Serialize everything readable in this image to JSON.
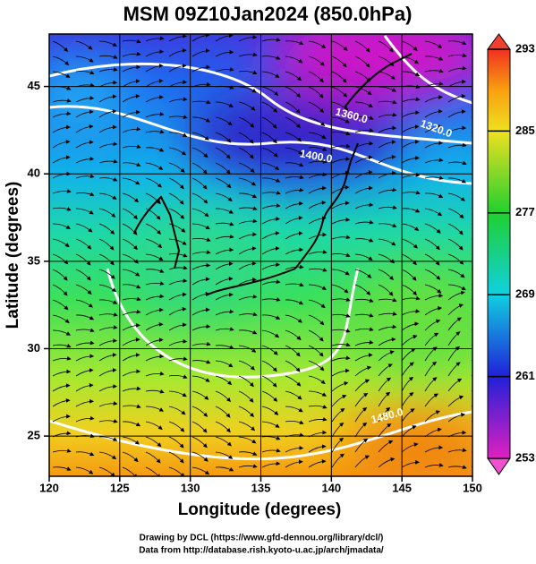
{
  "title": "MSM 09Z10Jan2024 (850.0hPa)",
  "map": {
    "xlabel": "Longitude (degrees)",
    "ylabel": "Latitude  (degrees)",
    "xlim": [
      120,
      150
    ],
    "ylim": [
      22.7,
      48
    ],
    "xticks": [
      120,
      125,
      130,
      135,
      140,
      145,
      150
    ],
    "yticks": [
      25,
      30,
      35,
      40,
      45
    ],
    "contour_labels": [
      "1360.0",
      "1320.0",
      "1400.0",
      "1480.0"
    ]
  },
  "colorbar": {
    "lim": [
      253,
      293
    ],
    "ticks": [
      253,
      261,
      269,
      277,
      285,
      293
    ]
  },
  "credits": [
    "Drawing by DCL (https://www.gfd-dennou.org/library/dcl/)",
    "Data from http://database.rish.kyoto-u.ac.jp/arch/jmadata/"
  ]
}
